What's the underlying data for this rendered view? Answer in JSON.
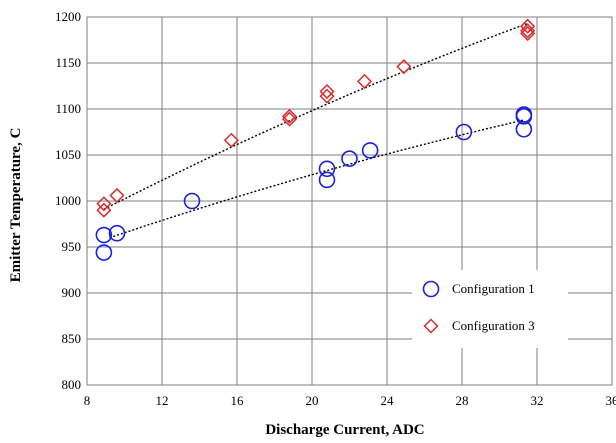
{
  "chart_data": {
    "type": "scatter",
    "title": "",
    "xlabel": "Discharge Current, ADC",
    "ylabel": "Emitter Temperature, C",
    "xlim": [
      8,
      36
    ],
    "ylim": [
      800,
      1200
    ],
    "x_ticks": [
      8,
      12,
      16,
      20,
      24,
      28,
      32,
      36
    ],
    "y_ticks": [
      800,
      850,
      900,
      950,
      1000,
      1050,
      1100,
      1150,
      1200
    ],
    "grid": true,
    "legend_position": "bottom-right",
    "series": [
      {
        "name": "Configuration 1",
        "marker": "circle",
        "color": "#1a22d6",
        "points": [
          [
            8.9,
            944
          ],
          [
            8.9,
            963
          ],
          [
            9.6,
            965
          ],
          [
            13.6,
            1000
          ],
          [
            20.8,
            1023
          ],
          [
            20.8,
            1035
          ],
          [
            22.0,
            1046
          ],
          [
            23.1,
            1055
          ],
          [
            28.1,
            1075
          ],
          [
            31.3,
            1078
          ],
          [
            31.3,
            1092
          ],
          [
            31.3,
            1094
          ]
        ],
        "trendline": {
          "from": 9.2,
          "to": 31.3,
          "y_start": 960,
          "y_mid": 1030,
          "y_end": 1088
        }
      },
      {
        "name": "Configuration 3",
        "marker": "diamond",
        "color": "#d92b2b",
        "points": [
          [
            8.9,
            990
          ],
          [
            8.9,
            997
          ],
          [
            9.6,
            1006
          ],
          [
            15.7,
            1066
          ],
          [
            18.8,
            1089
          ],
          [
            18.8,
            1092
          ],
          [
            20.8,
            1114
          ],
          [
            20.8,
            1119
          ],
          [
            22.8,
            1130
          ],
          [
            24.9,
            1146
          ],
          [
            31.5,
            1182
          ],
          [
            31.5,
            1185
          ],
          [
            31.5,
            1190
          ]
        ],
        "trendline": {
          "from": 8.9,
          "to": 31.5,
          "y_start": 991,
          "y_mid": 1100,
          "y_end": 1193
        }
      }
    ]
  }
}
